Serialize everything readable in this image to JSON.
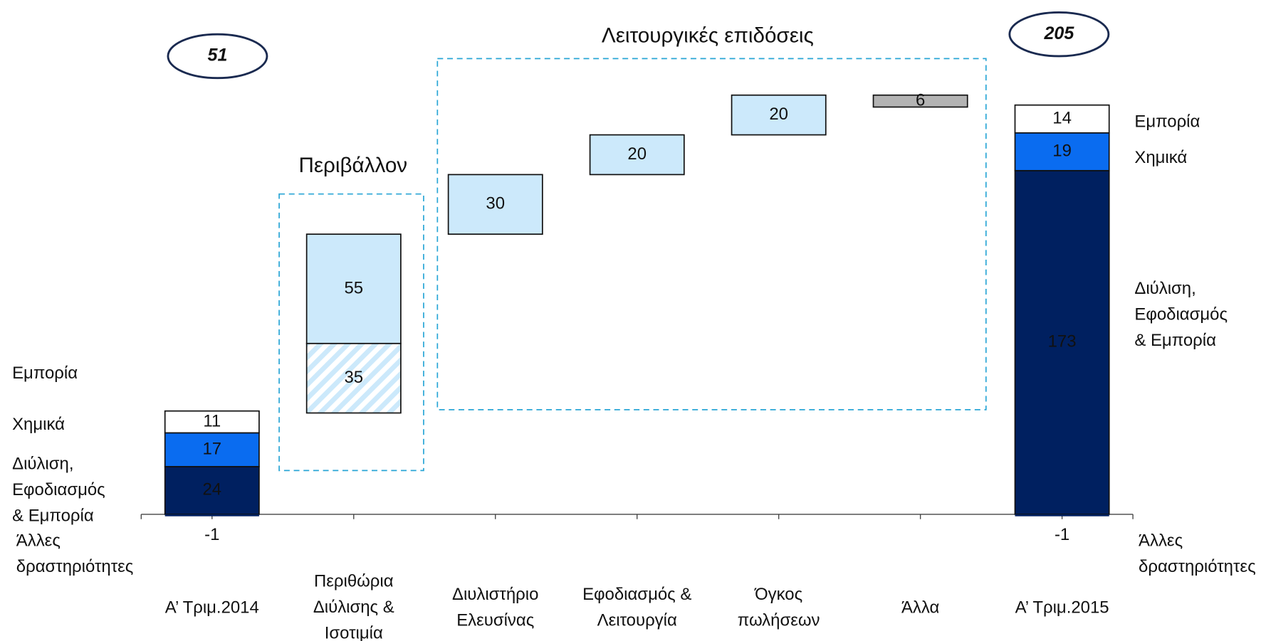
{
  "chart_data": {
    "type": "waterfall",
    "ylim": [
      0,
      230
    ],
    "groups": [
      "Περιβάλλον",
      "Λειτουργικές επιδόσεις"
    ],
    "bars": [
      {
        "category": "Α’ Τριμ.2014",
        "segments": [
          {
            "name": "Διύλιση,\nΕφοδιασμός\n& Εμπορία",
            "value": 24,
            "color": "#002060"
          },
          {
            "name": "Χημικά",
            "value": 17,
            "color": "#0a6cf0"
          },
          {
            "name": "Εμπορία",
            "value": 11,
            "color": "#ffffff"
          }
        ],
        "other": {
          "name": "Άλλες\nδραστηριότητες",
          "value": -1
        },
        "total": 51
      },
      {
        "category": "Περιθώρια\nΔιύλισης &\nΙσοτιμία",
        "segments": [
          {
            "value": 35,
            "color": "#cce9fb",
            "hatch": true
          },
          {
            "value": 55,
            "color": "#cce9fb"
          }
        ]
      },
      {
        "category": "Διυλιστήριο\nΕλευσίνας",
        "segments": [
          {
            "value": 30,
            "color": "#cce9fb"
          }
        ]
      },
      {
        "category": "Εφοδιασμός &\nΛειτουργία",
        "segments": [
          {
            "value": 20,
            "color": "#cce9fb"
          }
        ]
      },
      {
        "category": "Όγκος\nπωλήσεων",
        "segments": [
          {
            "value": 20,
            "color": "#cce9fb"
          }
        ]
      },
      {
        "category": "Άλλα",
        "segments": [
          {
            "value": -6,
            "value_label": "6",
            "color": "#b3b3b3"
          }
        ]
      },
      {
        "category": "Α’ Τριμ.2015",
        "segments": [
          {
            "name": "Διύλιση,\nΕφοδιασμός\n& Εμπορία",
            "value": 173,
            "color": "#002060"
          },
          {
            "name": "Χημικά",
            "value": 19,
            "color": "#0a6cf0"
          },
          {
            "name": "Εμπορία",
            "value": 14,
            "color": "#ffffff"
          }
        ],
        "other": {
          "name": "Άλλες\nδραστηριότητες",
          "value": -1
        },
        "total": 205
      }
    ]
  }
}
